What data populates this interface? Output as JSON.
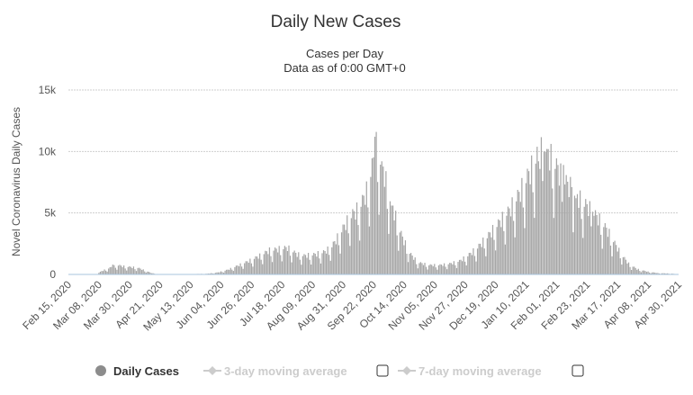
{
  "chart_data": {
    "type": "bar",
    "title": "Daily New Cases",
    "subtitle_lines": [
      "Cases per Day",
      "Data as of 0:00 GMT+0"
    ],
    "ylabel": "Novel Coronavirus Daily Cases",
    "xlabel": "",
    "ylim": [
      0,
      15000
    ],
    "y_ticks": [
      0,
      5000,
      10000,
      15000
    ],
    "y_tick_labels": [
      "0",
      "5k",
      "10k",
      "15k"
    ],
    "grid": true,
    "x_start_date": "Feb 15, 2020",
    "x_tick_labels": [
      "Feb 15, 2020",
      "Mar 08, 2020",
      "Mar 30, 2020",
      "Apr 21, 2020",
      "May 13, 2020",
      "Jun 04, 2020",
      "Jun 26, 2020",
      "Jul 18, 2020",
      "Aug 09, 2020",
      "Aug 31, 2020",
      "Sep 22, 2020",
      "Oct 14, 2020",
      "Nov 05, 2020",
      "Nov 27, 2020",
      "Dec 19, 2020",
      "Jan 10, 2021",
      "Feb 01, 2021",
      "Feb 23, 2021",
      "Mar 17, 2021",
      "Apr 08, 2021",
      "Apr 30, 2021"
    ],
    "x_tick_day_offsets": [
      0,
      22,
      44,
      66,
      88,
      110,
      132,
      154,
      176,
      198,
      220,
      242,
      264,
      286,
      308,
      330,
      352,
      374,
      396,
      418,
      440
    ],
    "series": [
      {
        "name": "Daily Cases",
        "visible": true,
        "color": "#a6a6a6",
        "key_points": [
          [
            0,
            0
          ],
          [
            20,
            0
          ],
          [
            24,
            250
          ],
          [
            30,
            500
          ],
          [
            35,
            700
          ],
          [
            40,
            600
          ],
          [
            45,
            550
          ],
          [
            50,
            500
          ],
          [
            55,
            300
          ],
          [
            60,
            100
          ],
          [
            65,
            20
          ],
          [
            75,
            0
          ],
          [
            100,
            50
          ],
          [
            108,
            150
          ],
          [
            115,
            350
          ],
          [
            122,
            650
          ],
          [
            130,
            1000
          ],
          [
            138,
            1400
          ],
          [
            145,
            1800
          ],
          [
            152,
            1900
          ],
          [
            158,
            2000
          ],
          [
            165,
            1500
          ],
          [
            170,
            1400
          ],
          [
            178,
            1500
          ],
          [
            185,
            1700
          ],
          [
            190,
            2100
          ],
          [
            195,
            2900
          ],
          [
            200,
            3800
          ],
          [
            205,
            4500
          ],
          [
            210,
            5000
          ],
          [
            215,
            6200
          ],
          [
            219,
            8000
          ],
          [
            222,
            9500
          ],
          [
            225,
            8500
          ],
          [
            228,
            7500
          ],
          [
            231,
            6000
          ],
          [
            234,
            5000
          ],
          [
            238,
            3500
          ],
          [
            242,
            2500
          ],
          [
            246,
            1600
          ],
          [
            252,
            900
          ],
          [
            260,
            700
          ],
          [
            268,
            700
          ],
          [
            275,
            800
          ],
          [
            282,
            1000
          ],
          [
            288,
            1400
          ],
          [
            295,
            2000
          ],
          [
            302,
            2800
          ],
          [
            310,
            3800
          ],
          [
            318,
            4800
          ],
          [
            325,
            6000
          ],
          [
            332,
            7500
          ],
          [
            338,
            8800
          ],
          [
            344,
            9500
          ],
          [
            348,
            8700
          ],
          [
            352,
            8000
          ],
          [
            356,
            7200
          ],
          [
            362,
            6500
          ],
          [
            368,
            5700
          ],
          [
            375,
            5000
          ],
          [
            382,
            4200
          ],
          [
            388,
            3400
          ],
          [
            393,
            2500
          ],
          [
            398,
            1600
          ],
          [
            404,
            800
          ],
          [
            410,
            400
          ],
          [
            418,
            200
          ],
          [
            425,
            100
          ],
          [
            430,
            80
          ],
          [
            435,
            60
          ],
          [
            440,
            0
          ]
        ],
        "spikes": [
          [
            32,
            800
          ],
          [
            221,
            11200
          ],
          [
            226,
            9200
          ],
          [
            229,
            8400
          ],
          [
            233,
            5600
          ],
          [
            339,
            9200
          ],
          [
            343,
            10000
          ],
          [
            345,
            10200
          ],
          [
            353,
            8900
          ],
          [
            357,
            8900
          ],
          [
            363,
            7100
          ],
          [
            366,
            6200
          ],
          [
            372,
            5500
          ],
          [
            378,
            5100
          ]
        ]
      },
      {
        "name": "3-day moving average",
        "visible": false,
        "color": "#cccccc"
      },
      {
        "name": "7-day moving average",
        "visible": false,
        "color": "#cccccc"
      }
    ]
  }
}
